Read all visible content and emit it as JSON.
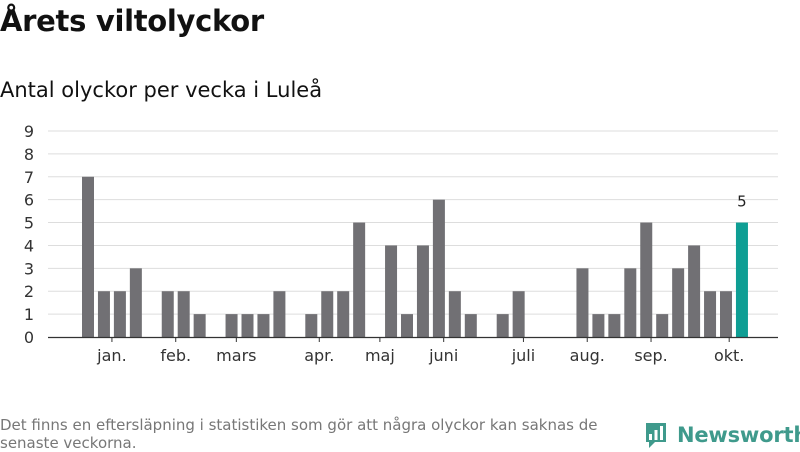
{
  "title": "Årets viltolyckor",
  "subtitle": "Antal olyckor per vecka i Luleå",
  "footnote": "Det finns en eftersläpning i statistiken som gör att några olyckor kan saknas de senaste veckorna.",
  "brand": {
    "name": "Newsworthy",
    "icon": "bar-chart-logo-icon",
    "color": "#3f9a8c"
  },
  "colors": {
    "bar": "#717074",
    "highlight": "#0e9e94",
    "grid": "#dddddd",
    "axis": "#333333"
  },
  "chart_data": {
    "type": "bar",
    "title": "",
    "xlabel": "",
    "ylabel": "",
    "ylim": [
      0,
      9
    ],
    "yticks": [
      0,
      1,
      2,
      3,
      4,
      5,
      6,
      7,
      8,
      9
    ],
    "grid": true,
    "x": [
      1,
      2,
      3,
      4,
      5,
      6,
      7,
      8,
      9,
      10,
      11,
      12,
      13,
      14,
      15,
      16,
      17,
      18,
      19,
      20,
      21,
      22,
      23,
      24,
      25,
      26,
      27,
      28,
      29,
      30,
      31,
      32,
      33,
      34,
      35,
      36,
      37,
      38,
      39,
      40,
      41,
      42
    ],
    "values": [
      7,
      2,
      2,
      3,
      0,
      2,
      2,
      1,
      0,
      1,
      1,
      1,
      2,
      0,
      1,
      2,
      2,
      5,
      0,
      4,
      1,
      4,
      6,
      2,
      1,
      0,
      1,
      2,
      0,
      0,
      0,
      3,
      1,
      1,
      3,
      5,
      1,
      3,
      4,
      2,
      2,
      5
    ],
    "highlight_index": 41,
    "highlight_label": "5",
    "month_labels": [
      {
        "label": "jan.",
        "x": 1.5
      },
      {
        "label": "feb.",
        "x": 5.5
      },
      {
        "label": "mars",
        "x": 9.3
      },
      {
        "label": "apr.",
        "x": 14.5
      },
      {
        "label": "maj",
        "x": 18.3
      },
      {
        "label": "juni",
        "x": 22.3
      },
      {
        "label": "juli",
        "x": 27.3
      },
      {
        "label": "aug.",
        "x": 31.3
      },
      {
        "label": "sep.",
        "x": 35.3
      },
      {
        "label": "okt.",
        "x": 40.2
      }
    ]
  }
}
